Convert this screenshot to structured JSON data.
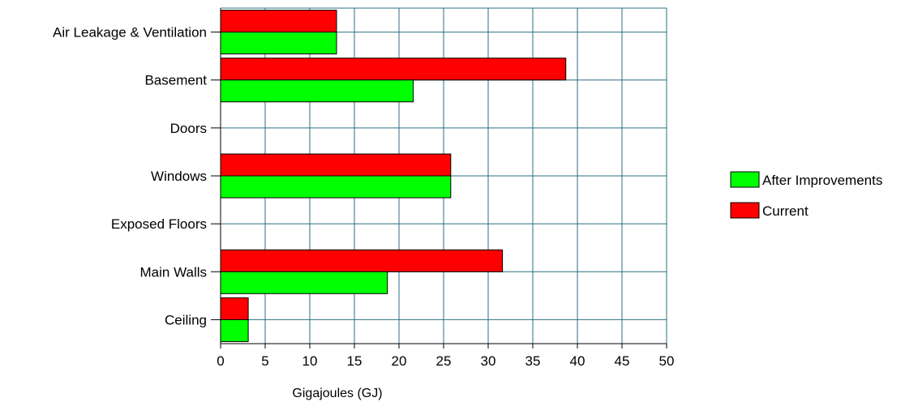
{
  "chart_data": {
    "type": "bar",
    "orientation": "horizontal",
    "title": "",
    "xlabel": "Gigajoules (GJ)",
    "ylabel": "",
    "xlim": [
      0,
      50
    ],
    "x_ticks": [
      0,
      5,
      10,
      15,
      20,
      25,
      30,
      35,
      40,
      45,
      50
    ],
    "grid": true,
    "legend_position": "right",
    "categories": [
      "Air Leakage & Ventilation",
      "Basement",
      "Doors",
      "Windows",
      "Exposed Floors",
      "Main Walls",
      "Ceiling"
    ],
    "series": [
      {
        "name": "Current",
        "color": "#ff0000",
        "values": [
          13,
          38.7,
          0,
          25.8,
          0,
          31.6,
          3.1
        ]
      },
      {
        "name": "After Improvements",
        "color": "#00ff00",
        "values": [
          13,
          21.6,
          0,
          25.8,
          0,
          18.7,
          3.1
        ]
      }
    ],
    "legend": [
      "After Improvements",
      "Current"
    ],
    "colors": {
      "grid": "#2b6f80",
      "axis": "#000000",
      "bar_stroke": "#000000"
    }
  }
}
